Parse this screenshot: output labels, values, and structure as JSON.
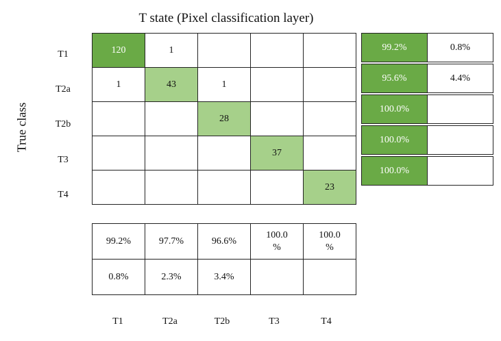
{
  "title": "T state (Pixel classification layer)",
  "y_axis_label": "True class",
  "colors": {
    "dark": "#6aaa46",
    "light": "#a6d08a",
    "border": "#222222"
  },
  "chart_data": {
    "type": "table",
    "title": "T state (Pixel classification layer)",
    "ylabel": "True class",
    "row_labels": [
      "T1",
      "T2a",
      "T2b",
      "T3",
      "T4"
    ],
    "col_labels": [
      "T1",
      "T2a",
      "T2b",
      "T3",
      "T4"
    ],
    "matrix": [
      [
        "120",
        "1",
        "",
        "",
        ""
      ],
      [
        "1",
        "43",
        "1",
        "",
        ""
      ],
      [
        "",
        "",
        "28",
        "",
        ""
      ],
      [
        "",
        "",
        "",
        "37",
        ""
      ],
      [
        "",
        "",
        "",
        "",
        "23"
      ]
    ],
    "row_stats": [
      [
        "99.2%",
        "0.8%"
      ],
      [
        "95.6%",
        "4.4%"
      ],
      [
        "100.0%",
        ""
      ],
      [
        "100.0%",
        ""
      ],
      [
        "100.0%",
        ""
      ]
    ],
    "col_stats": [
      [
        "99.2%",
        "97.7%",
        "96.6%",
        "100.0 %",
        "100.0 %"
      ],
      [
        "0.8%",
        "2.3%",
        "3.4%",
        "",
        ""
      ]
    ]
  }
}
